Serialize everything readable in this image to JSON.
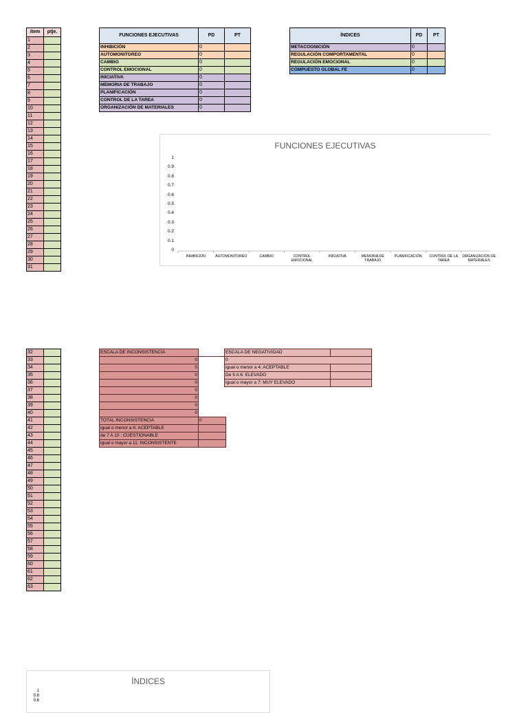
{
  "items_header": {
    "item": "ítem",
    "score": "ptje."
  },
  "items_top": [
    "1",
    "2",
    "3",
    "4",
    "5",
    "6",
    "7",
    "8",
    "9",
    "10",
    "11",
    "12",
    "13",
    "14",
    "15",
    "16",
    "17",
    "18",
    "19",
    "20",
    "21",
    "22",
    "23",
    "24",
    "25",
    "26",
    "27",
    "28",
    "29",
    "30",
    "31"
  ],
  "items_bottom": [
    "32",
    "33",
    "34",
    "35",
    "36",
    "37",
    "38",
    "39",
    "40",
    "41",
    "42",
    "43",
    "44",
    "45",
    "46",
    "47",
    "48",
    "49",
    "50",
    "51",
    "52",
    "53",
    "54",
    "55",
    "56",
    "57",
    "58",
    "59",
    "60",
    "61",
    "62",
    "63"
  ],
  "fe_table": {
    "header": {
      "name": "FUNCIONES EJECUTIVAS",
      "pd": "PD",
      "pt": "PT"
    },
    "rows": [
      {
        "name": "INHIBICIÓN",
        "pd": "0",
        "pt": "",
        "color": "orange"
      },
      {
        "name": "AUTOMONITOREO",
        "pd": "0",
        "pt": "",
        "color": "orange"
      },
      {
        "name": "CAMBIO",
        "pd": "0",
        "pt": "",
        "color": "green"
      },
      {
        "name": "CONTROL EMOCIONAL",
        "pd": "0",
        "pt": "",
        "color": "green"
      },
      {
        "name": "INICIATIVA",
        "pd": "0",
        "pt": "",
        "color": "purple"
      },
      {
        "name": "MEMORIA DE TRABAJO",
        "pd": "0",
        "pt": "",
        "color": "purple"
      },
      {
        "name": "PLANIFICACIÓN",
        "pd": "0",
        "pt": "",
        "color": "purple"
      },
      {
        "name": "CONTROL DE LA TAREA",
        "pd": "0",
        "pt": "",
        "color": "purple"
      },
      {
        "name": "ORGANIZACIÓN DE MATERIALES",
        "pd": "0",
        "pt": "",
        "color": "purple"
      }
    ]
  },
  "indices_table": {
    "header": {
      "name": "ÍNDICES",
      "pd": "PD",
      "pt": "PT"
    },
    "rows": [
      {
        "name": "METACOGNICIÓN",
        "pd": "0",
        "pt": "",
        "color": "purple"
      },
      {
        "name": "REGULACIÓN COMPORTAMENTAL",
        "pd": "0",
        "pt": "",
        "color": "orange"
      },
      {
        "name": "REGULACIÓN EMOCIONAL",
        "pd": "0",
        "pt": "",
        "color": "green"
      },
      {
        "name": "COMPUESTO GLOBAL FE",
        "pd": "0",
        "pt": "",
        "color": "blue"
      }
    ]
  },
  "chart_data": [
    {
      "type": "bar",
      "title": "FUNCIONES EJECUTIVAS",
      "categories": [
        "INHIBICIÓN",
        "AUTOMONITOREO",
        "CAMBIO",
        "CONTROL EMOCIONAL",
        "INICIATIVA",
        "MEMORIA DE TRABAJO",
        "PLANIFICACIÓN",
        "CONTROL DE LA TAREA",
        "ORGANIZACIÓN DE MATERIALES"
      ],
      "values": [
        0,
        0,
        0,
        0,
        0,
        0,
        0,
        0,
        0
      ],
      "yticks": [
        "1",
        "0.9",
        "0.8",
        "0.7",
        "0.6",
        "0.5",
        "0.4",
        "0.3",
        "0.2",
        "0.1",
        "0"
      ],
      "ylim": [
        0,
        1
      ],
      "grid": false
    },
    {
      "type": "bar",
      "title": "ÍNDICES",
      "yticks": [
        "1",
        "0.8",
        "0.6"
      ],
      "ylim": [
        0,
        1
      ]
    }
  ],
  "inconsistencia": {
    "title": "ESCALA DE INCONSISTENCIA",
    "values": [
      "0",
      "0",
      "0",
      "0",
      "0",
      "0",
      "0",
      "0"
    ],
    "total_label": "TOTAL INCONSISTENCIA",
    "total_value": "0",
    "legend": [
      "igual o menor a 6: ACEPTABLE",
      "de 7 A 10 : CUESTIONABLE",
      "igual o mayor a 11: INCONSISTENTE"
    ]
  },
  "negatividad": {
    "title": "ESCALA DE NEGATIVIDAD",
    "value": "0",
    "legend": [
      "igual o menor a 4: ACEPTABLE",
      "De 5 A 6: ELEVADO",
      "igual o mayor a 7: MUY ELEVADO"
    ]
  }
}
